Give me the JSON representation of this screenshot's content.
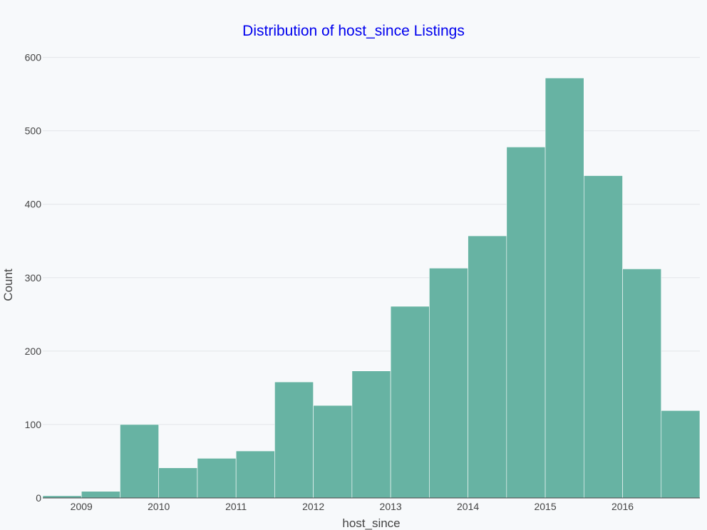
{
  "chart_data": {
    "type": "bar",
    "title": "Distribution of host_since Listings",
    "xlabel": "host_since",
    "ylabel": "Count",
    "x_tick_labels": [
      "2009",
      "2010",
      "2011",
      "2012",
      "2013",
      "2014",
      "2015",
      "2016"
    ],
    "x_range": [
      2008.5,
      2017.0
    ],
    "bin_width": 0.5,
    "ylim": [
      0,
      620
    ],
    "y_ticks": [
      0,
      100,
      200,
      300,
      400,
      500,
      600
    ],
    "bins": [
      {
        "x0": 2008.5,
        "x1": 2009.0,
        "count": 3
      },
      {
        "x0": 2009.0,
        "x1": 2009.5,
        "count": 9
      },
      {
        "x0": 2009.5,
        "x1": 2010.0,
        "count": 100
      },
      {
        "x0": 2010.0,
        "x1": 2010.5,
        "count": 41
      },
      {
        "x0": 2010.5,
        "x1": 2011.0,
        "count": 54
      },
      {
        "x0": 2011.0,
        "x1": 2011.5,
        "count": 64
      },
      {
        "x0": 2011.5,
        "x1": 2012.0,
        "count": 158
      },
      {
        "x0": 2012.0,
        "x1": 2012.5,
        "count": 126
      },
      {
        "x0": 2012.5,
        "x1": 2013.0,
        "count": 173
      },
      {
        "x0": 2013.0,
        "x1": 2013.5,
        "count": 261
      },
      {
        "x0": 2013.5,
        "x1": 2014.0,
        "count": 313
      },
      {
        "x0": 2014.0,
        "x1": 2014.5,
        "count": 357
      },
      {
        "x0": 2014.5,
        "x1": 2015.0,
        "count": 478
      },
      {
        "x0": 2015.0,
        "x1": 2015.5,
        "count": 572
      },
      {
        "x0": 2015.5,
        "x1": 2016.0,
        "count": 439
      },
      {
        "x0": 2016.0,
        "x1": 2016.5,
        "count": 312
      },
      {
        "x0": 2016.5,
        "x1": 2017.0,
        "count": 119
      }
    ],
    "grid": true,
    "colors": {
      "bar": "#67b3a3",
      "title": "#0000ee",
      "background": "#f7f9fb"
    }
  }
}
